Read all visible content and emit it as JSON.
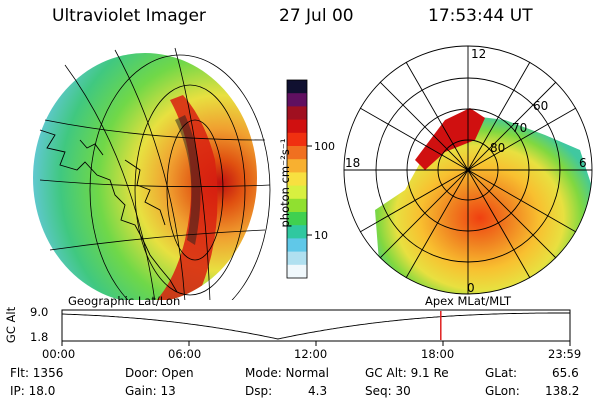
{
  "header": {
    "instrument": "Ultraviolet Imager",
    "date": "27 Jul 00",
    "time": "17:53:44 UT"
  },
  "colorbar": {
    "unit_label": "photon cm⁻²s⁻¹",
    "ticks": [
      "100",
      "10"
    ],
    "colors": [
      "#101030",
      "#601060",
      "#a01020",
      "#d01010",
      "#f03010",
      "#f07020",
      "#f8b030",
      "#f8e040",
      "#d8f040",
      "#90e030",
      "#40d050",
      "#30c8a0",
      "#60c8e8",
      "#b0e0f0",
      "#f0f8fc"
    ]
  },
  "polar_plot": {
    "mlt_labels": {
      "top": "12",
      "left": "18",
      "right": "6",
      "bottom": "0"
    },
    "lat_labels": [
      "60",
      "70",
      "80"
    ]
  },
  "altitude_panel": {
    "left_label": "Geographic Lat/Lon",
    "right_label": "Apex MLat/MLT",
    "axis_title": "GC Alt",
    "y_ticks": [
      "9.0",
      "1.8"
    ],
    "time_ticks": [
      "00:00",
      "06:00",
      "12:00",
      "18:00",
      "23:59"
    ],
    "current_time_marker": "17:53:44",
    "marker_color": "#e02020"
  },
  "info": {
    "flt": "Flt:  1356",
    "ip": "IP:  18.0",
    "door": "Door:  Open",
    "gain": "Gain:  13",
    "mode": "Mode:  Normal",
    "dsp": "Dsp:",
    "dsp_val": "4.3",
    "gcalt": "GC Alt:  9.1 Re",
    "seq": "Seq:  30",
    "glat": "GLat:",
    "glat_val": "65.6",
    "glon": "GLon:",
    "glon_val": "138.2"
  }
}
